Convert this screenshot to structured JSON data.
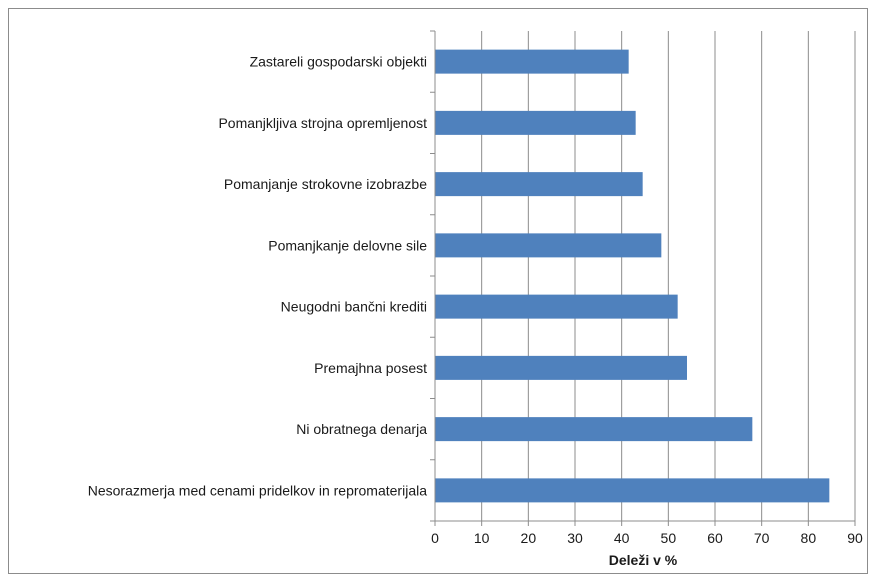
{
  "chart_data": {
    "type": "bar",
    "orientation": "horizontal",
    "categories": [
      "Zastareli gospodarski objekti",
      "Pomanjkljiva strojna opremljenost",
      "Pomanjanje strokovne izobrazbe",
      "Pomanjkanje delovne sile",
      "Neugodni bančni krediti",
      "Premajhna posest",
      "Ni obratnega denarja",
      "Nesorazmerja med cenami pridelkov in  repromaterijala"
    ],
    "values": [
      41.5,
      43,
      44.5,
      48.5,
      52,
      54,
      68,
      84.5
    ],
    "xlabel": "Deleži v %",
    "ylabel": "",
    "xlim": [
      0,
      90
    ],
    "xticks": [
      "0",
      "10",
      "20",
      "30",
      "40",
      "50",
      "60",
      "70",
      "80",
      "90"
    ],
    "grid": true,
    "bar_color": "#4f81bd",
    "grid_color": "#8c8c8c"
  }
}
